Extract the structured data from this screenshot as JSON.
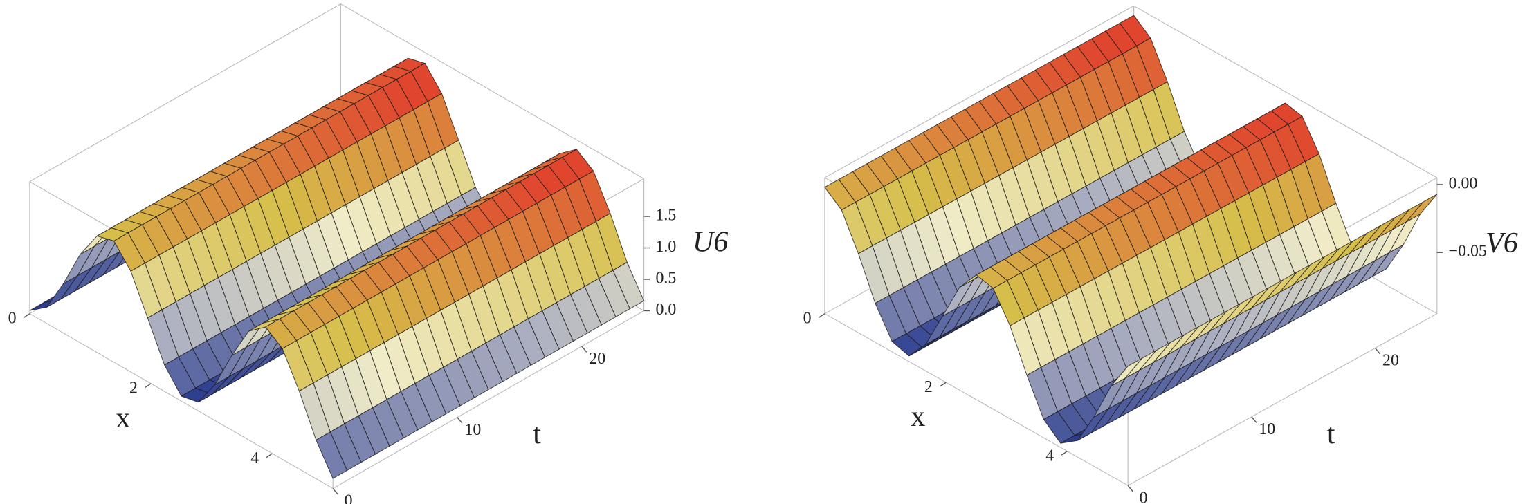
{
  "chart_data": [
    {
      "type": "surface3d",
      "xlabel": "x",
      "ylabel": "t",
      "zlabel": "U6",
      "xlim": [
        0,
        5
      ],
      "ylim": [
        0,
        25
      ],
      "zlim": [
        0,
        2.1
      ],
      "xticks": [
        0,
        2,
        4
      ],
      "yticks": [
        0,
        10,
        20
      ],
      "zticks": [
        {
          "value": 0,
          "label": "0.0"
        },
        0.5,
        {
          "value": 1,
          "label": "1.0"
        },
        1.5
      ]
    },
    {
      "type": "surface3d",
      "xlabel": "x",
      "ylabel": "t",
      "zlabel": "V6",
      "xlim": [
        0,
        5
      ],
      "ylim": [
        0,
        25
      ],
      "zlim": [
        -0.095,
        0.005
      ],
      "xticks": [
        0,
        2,
        4
      ],
      "yticks": [
        0,
        10,
        20
      ],
      "zticks": [
        {
          "value": 0,
          "label": "0.00"
        },
        {
          "value": -0.05,
          "label": "−0.05"
        }
      ]
    }
  ]
}
